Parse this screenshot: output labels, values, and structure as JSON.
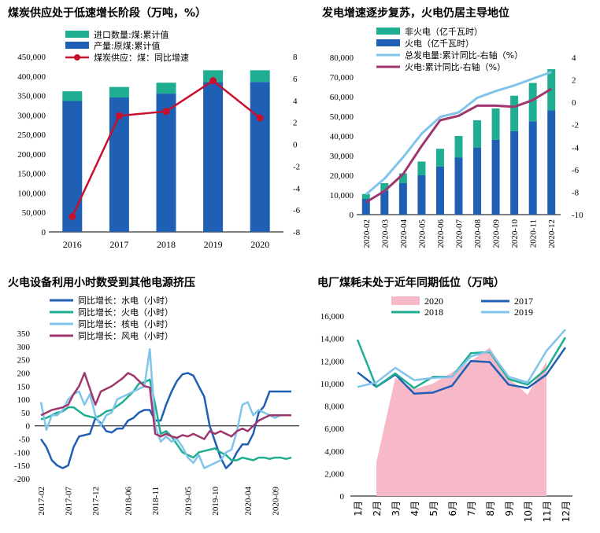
{
  "chart_data": [
    {
      "type": "bar",
      "title": "煤炭供应处于低速增长阶段（万吨，%）",
      "categories": [
        "2016",
        "2017",
        "2018",
        "2019",
        "2020"
      ],
      "series": [
        {
          "name": "产量:原煤:累计值",
          "kind": "bar",
          "color": "#1f5fb4",
          "values": [
            336000,
            345000,
            355000,
            385000,
            385000
          ]
        },
        {
          "name": "进口数量:煤:累计值",
          "kind": "bar-stack",
          "color": "#1fae92",
          "values": [
            25000,
            27000,
            28000,
            30000,
            30000
          ]
        },
        {
          "name": "煤炭供应：煤：同比增速",
          "kind": "line",
          "axis": "right",
          "color": "#c8102e",
          "values": [
            -6.6,
            2.6,
            3.0,
            5.8,
            2.4
          ]
        }
      ],
      "ylim": [
        0,
        450000
      ],
      "yticks": [
        "0",
        "50,000",
        "100,000",
        "150,000",
        "200,000",
        "250,000",
        "300,000",
        "350,000",
        "400,000",
        "450,000"
      ],
      "y2lim": [
        -8,
        8
      ],
      "y2ticks": [
        "-8",
        "-6",
        "-4",
        "-2",
        "0",
        "2",
        "4",
        "6",
        "8"
      ],
      "legend": "top-left"
    },
    {
      "type": "bar",
      "title": "发电增速逐步复苏，火电仍居主导地位",
      "categories": [
        "2020-02",
        "2020-03",
        "2020-04",
        "2020-05",
        "2020-06",
        "2020-07",
        "2020-08",
        "2020-09",
        "2020-10",
        "2020-11",
        "2020-12"
      ],
      "series": [
        {
          "name": "火电（亿千瓦时）",
          "kind": "bar",
          "color": "#1f5fb4",
          "values": [
            8000,
            12000,
            16000,
            20000,
            24500,
            29000,
            34000,
            38000,
            42500,
            47500,
            53000
          ]
        },
        {
          "name": "非火电（亿千瓦时）",
          "kind": "bar-stack",
          "color": "#1fae92",
          "values": [
            2500,
            4000,
            5000,
            7000,
            9000,
            11000,
            14000,
            16000,
            18000,
            19500,
            21000
          ]
        },
        {
          "name": "总发电量:累计同比-右轴（%）",
          "kind": "line",
          "axis": "right",
          "color": "#7fc4ea",
          "values": [
            -8.2,
            -6.8,
            -4.9,
            -2.8,
            -1.3,
            -0.9,
            0.4,
            1.0,
            1.5,
            2.1,
            2.7
          ]
        },
        {
          "name": "火电:累计同比-右轴（%）",
          "kind": "line",
          "axis": "right",
          "color": "#a0366e",
          "values": [
            -8.9,
            -7.9,
            -6.4,
            -3.9,
            -1.6,
            -1.2,
            -0.3,
            -0.3,
            -0.4,
            0.2,
            1.2
          ]
        }
      ],
      "ylim": [
        0,
        80000
      ],
      "yticks": [
        "0",
        "10,000",
        "20,000",
        "30,000",
        "40,000",
        "50,000",
        "60,000",
        "70,000",
        "80,000"
      ],
      "y2lim": [
        -10,
        4
      ],
      "y2ticks": [
        "-10",
        "-8",
        "-6",
        "-4",
        "-2",
        "0",
        "2",
        "4"
      ],
      "legend": "top-left"
    },
    {
      "type": "line",
      "title": "火电设备利用小时数受到其他电源挤压",
      "x": [
        "2017-02",
        "2017-03",
        "2017-04",
        "2017-05",
        "2017-06",
        "2017-07",
        "2017-08",
        "2017-09",
        "2017-10",
        "2017-11",
        "2017-12",
        "2018-01",
        "2018-02",
        "2018-03",
        "2018-04",
        "2018-05",
        "2018-06",
        "2018-07",
        "2018-08",
        "2018-09",
        "2018-10",
        "2018-11",
        "2018-12",
        "2019-01",
        "2019-02",
        "2019-03",
        "2019-04",
        "2019-05",
        "2019-06",
        "2019-07",
        "2019-08",
        "2019-09",
        "2019-10",
        "2019-11",
        "2019-12",
        "2020-01",
        "2020-02",
        "2020-03",
        "2020-04",
        "2020-05",
        "2020-06",
        "2020-07",
        "2020-08",
        "2020-09",
        "2020-10",
        "2020-11",
        "2020-12"
      ],
      "xticks": [
        "2017-02",
        "2017-07",
        "2017-12",
        "2018-06",
        "2018-11",
        "2019-05",
        "2019-10",
        "2020-04",
        "2020-09"
      ],
      "series": [
        {
          "name": "同比增长：水电（小时）",
          "color": "#1f5fb4",
          "values": [
            -50,
            -80,
            -130,
            -150,
            -160,
            -150,
            -80,
            -40,
            -35,
            -30,
            30,
            10,
            -20,
            -25,
            -10,
            -10,
            20,
            30,
            50,
            60,
            60,
            20,
            20,
            80,
            130,
            170,
            195,
            200,
            190,
            150,
            110,
            0,
            -60,
            -120,
            -160,
            -140,
            -100,
            -70,
            -70,
            -30,
            50,
            75,
            130,
            130,
            130,
            130,
            130
          ]
        },
        {
          "name": "同比增长：火电（小时）",
          "color": "#1fae92",
          "values": [
            25,
            30,
            40,
            50,
            55,
            70,
            70,
            55,
            40,
            35,
            30,
            40,
            55,
            60,
            75,
            90,
            110,
            130,
            160,
            165,
            175,
            80,
            -30,
            -20,
            -40,
            -70,
            -100,
            -110,
            -120,
            -100,
            -95,
            -90,
            -85,
            -100,
            -110,
            -130,
            -130,
            -120,
            -125,
            -130,
            -120,
            -120,
            -125,
            -120,
            -120,
            -125,
            -120
          ]
        },
        {
          "name": "同比增长：核电（小时）",
          "color": "#7fc4ea",
          "values": [
            90,
            -15,
            40,
            40,
            60,
            100,
            120,
            130,
            80,
            120,
            40,
            0,
            40,
            50,
            100,
            110,
            120,
            130,
            140,
            150,
            290,
            0,
            -60,
            -40,
            -60,
            -50,
            -80,
            -120,
            -140,
            -110,
            -160,
            -150,
            -140,
            -130,
            -100,
            -90,
            -20,
            80,
            90,
            40,
            60,
            50,
            40,
            30,
            40,
            40,
            40
          ]
        },
        {
          "name": "同比增长：风电（小时）",
          "color": "#a0366e",
          "values": [
            40,
            50,
            60,
            65,
            70,
            80,
            120,
            150,
            200,
            140,
            80,
            130,
            140,
            150,
            165,
            180,
            200,
            190,
            170,
            150,
            145,
            -30,
            -40,
            -30,
            -40,
            -45,
            -35,
            -40,
            -30,
            -40,
            -50,
            -20,
            -30,
            -20,
            -30,
            -40,
            -20,
            -10,
            -20,
            0,
            20,
            30,
            40,
            40,
            40,
            40,
            40
          ]
        }
      ],
      "ylim": [
        -200,
        350
      ],
      "yticks": [
        "-200",
        "-150",
        "-100",
        "-50",
        "0",
        "50",
        "100",
        "150",
        "200",
        "250",
        "300",
        "350"
      ],
      "legend": "top-left"
    },
    {
      "type": "area",
      "title": "电厂煤耗未处于近年同期低位（万吨）",
      "categories": [
        "1月",
        "2月",
        "3月",
        "4月",
        "5月",
        "6月",
        "7月",
        "8月",
        "9月",
        "10月",
        "11月",
        "12月"
      ],
      "series": [
        {
          "name": "2020",
          "kind": "area",
          "color": "#f7b8c8",
          "values": [
            null,
            3000,
            10500,
            9500,
            10000,
            11000,
            12000,
            13200,
            10500,
            9000,
            12000,
            null
          ]
        },
        {
          "name": "2017",
          "kind": "line",
          "color": "#1f5fb4",
          "values": [
            11000,
            9700,
            10800,
            9100,
            9200,
            9800,
            12000,
            11900,
            9900,
            9600,
            10800,
            13200
          ]
        },
        {
          "name": "2018",
          "kind": "line",
          "color": "#1fae92",
          "values": [
            13900,
            9700,
            10900,
            9600,
            10600,
            10600,
            12700,
            12800,
            10400,
            9900,
            11300,
            14100
          ]
        },
        {
          "name": "2019",
          "kind": "line",
          "color": "#7fc4ea",
          "values": [
            9700,
            10100,
            11400,
            10300,
            10500,
            10600,
            12400,
            12900,
            10600,
            10100,
            12900,
            14800
          ]
        }
      ],
      "ylim": [
        0,
        16000
      ],
      "yticks": [
        "0",
        "2,000",
        "4,000",
        "6,000",
        "8,000",
        "10,000",
        "12,000",
        "14,000",
        "16,000"
      ],
      "legend": "top"
    }
  ]
}
